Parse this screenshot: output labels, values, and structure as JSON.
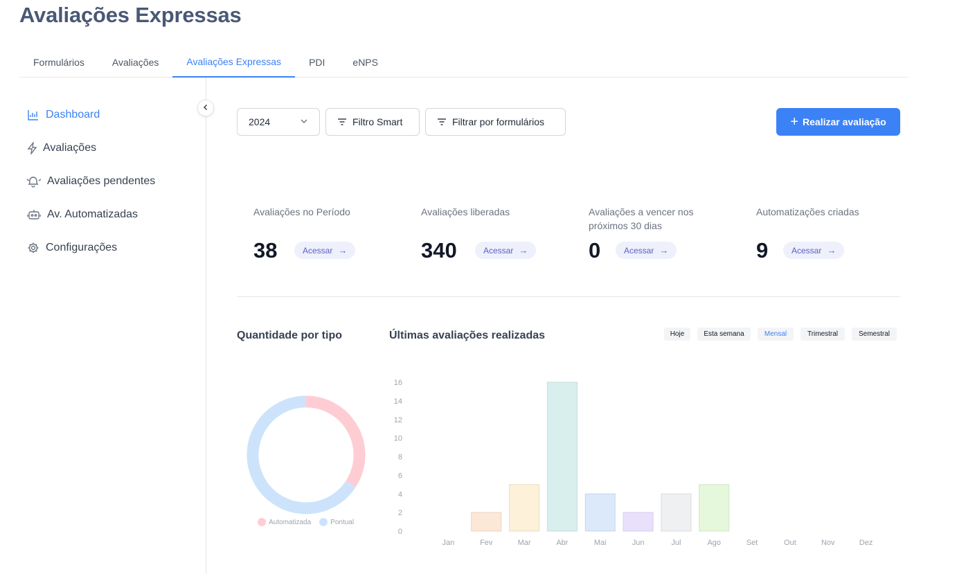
{
  "page": {
    "title": "Avaliações Expressas"
  },
  "tabs": [
    {
      "label": "Formulários"
    },
    {
      "label": "Avaliações"
    },
    {
      "label": "Avaliações Expressas"
    },
    {
      "label": "PDI"
    },
    {
      "label": "eNPS"
    }
  ],
  "sidebar": {
    "items": [
      {
        "label": "Dashboard",
        "icon": "chart-icon"
      },
      {
        "label": "Avaliações",
        "icon": "lightning-icon"
      },
      {
        "label": "Avaliações pendentes",
        "icon": "bell-icon"
      },
      {
        "label": "Av. Automatizadas",
        "icon": "robot-icon"
      },
      {
        "label": "Configurações",
        "icon": "gear-icon"
      }
    ]
  },
  "toolbar": {
    "year": "2024",
    "filter_smart": "Filtro Smart",
    "filter_forms": "Filtrar por formulários",
    "primary": "Realizar avaliação",
    "accent_color": "#3b82f6"
  },
  "stats": [
    {
      "label": "Avaliações no Período",
      "value": "38",
      "link": "Acessar"
    },
    {
      "label": "Avaliações liberadas",
      "value": "340",
      "link": "Acessar"
    },
    {
      "label": "Avaliações a vencer nos próximos 30 dias",
      "value": "0",
      "link": "Acessar"
    },
    {
      "label": "Automatizações criadas",
      "value": "9",
      "link": "Acessar"
    }
  ],
  "sections": {
    "by_type": "Quantidade por tipo",
    "latest": "Últimas avaliações realizadas"
  },
  "periods": [
    {
      "label": "Hoje"
    },
    {
      "label": "Esta semana"
    },
    {
      "label": "Mensal",
      "active": true
    },
    {
      "label": "Trimestral"
    },
    {
      "label": "Semestral"
    }
  ],
  "chart_data": [
    {
      "type": "pie",
      "title": "Quantidade por tipo",
      "categories": [
        "Automatizada",
        "Pontual"
      ],
      "values": [
        13,
        25
      ],
      "colors": [
        "#fecdd3",
        "#cce3fb"
      ]
    },
    {
      "type": "bar",
      "title": "Últimas avaliações realizadas",
      "categories": [
        "Jan",
        "Fev",
        "Mar",
        "Abr",
        "Mai",
        "Jun",
        "Jul",
        "Ago",
        "Set",
        "Out",
        "Nov",
        "Dez"
      ],
      "values": [
        0,
        2,
        5,
        16,
        4,
        2,
        4,
        5,
        0,
        0,
        0,
        0
      ],
      "colors": [
        "#fde7d6",
        "#fde7d6",
        "#fdf1d9",
        "#d9efee",
        "#dce9fb",
        "#e9e1fc",
        "#eef0f1",
        "#e5f8dc",
        "#e5e7eb",
        "#e5e7eb",
        "#e5e7eb",
        "#e5e7eb"
      ],
      "ylim": [
        0,
        16
      ],
      "yticks": [
        0,
        2,
        4,
        6,
        8,
        10,
        12,
        14,
        16
      ],
      "grid": false
    }
  ]
}
